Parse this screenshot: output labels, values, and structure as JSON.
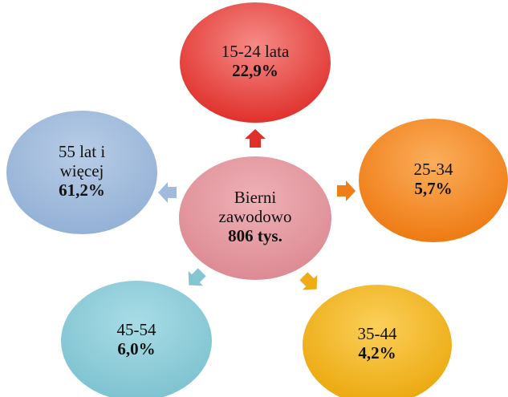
{
  "center": {
    "lines": [
      "Bierni",
      "zawodowo"
    ],
    "value": "806 tys."
  },
  "nodes": [
    {
      "lines": [
        "15-24 lata"
      ],
      "value": "22,9%"
    },
    {
      "lines": [
        "25-34"
      ],
      "value": "5,7%"
    },
    {
      "lines": [
        "35-44"
      ],
      "value": "4,2%"
    },
    {
      "lines": [
        "45-54"
      ],
      "value": "6,0%"
    },
    {
      "lines": [
        "55 lat i",
        "więcej"
      ],
      "value": "61,2%"
    }
  ]
}
